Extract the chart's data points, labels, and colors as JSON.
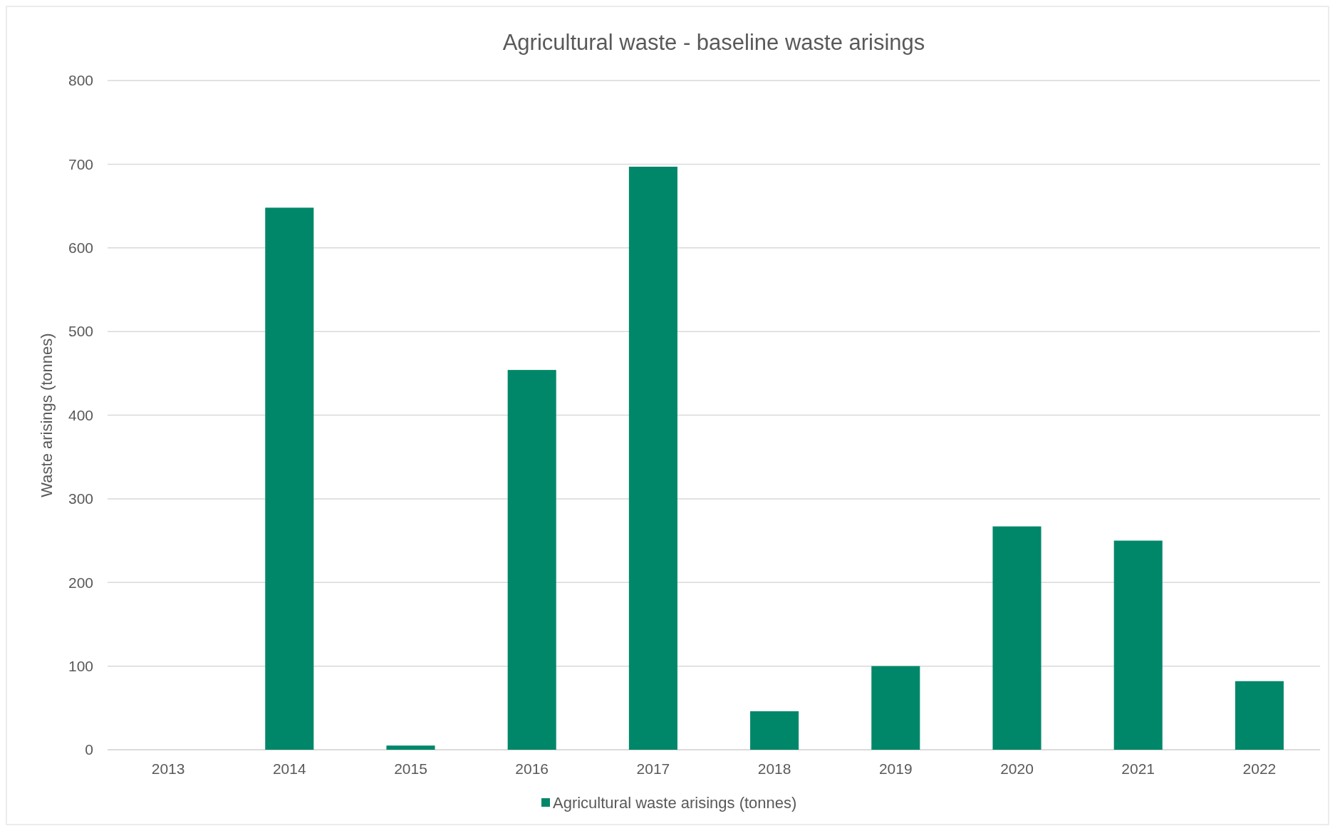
{
  "chart_data": {
    "type": "bar",
    "title": "Agricultural waste - baseline waste arisings",
    "ylabel": "Waste arisings (tonnes)",
    "categories": [
      "2013",
      "2014",
      "2015",
      "2016",
      "2017",
      "2018",
      "2019",
      "2020",
      "2021",
      "2022"
    ],
    "series": [
      {
        "name": "Agricultural waste arisings (tonnes)",
        "color": "#00876a",
        "values": [
          0,
          648,
          5,
          454,
          697,
          46,
          100,
          267,
          250,
          82
        ]
      }
    ],
    "ylim": [
      0,
      800
    ],
    "yticks": [
      0,
      100,
      200,
      300,
      400,
      500,
      600,
      700,
      800
    ],
    "grid": "y",
    "legend": "bottom"
  }
}
